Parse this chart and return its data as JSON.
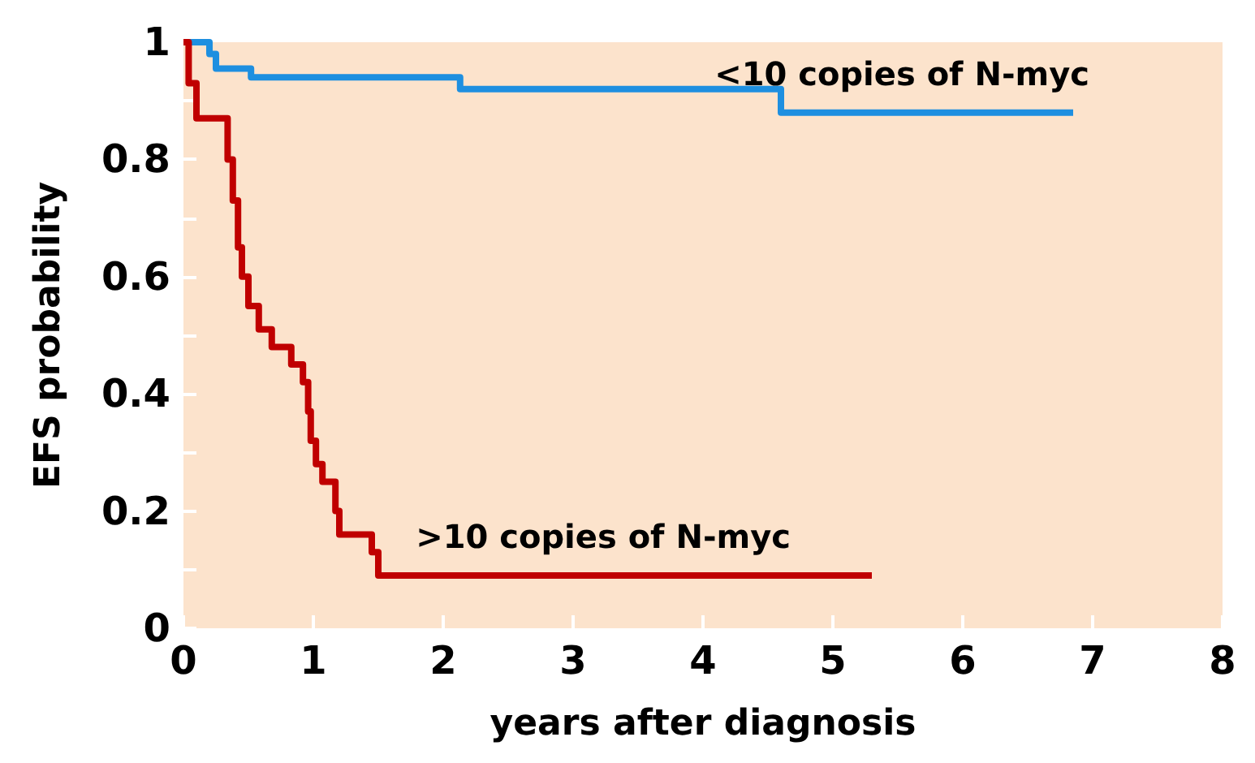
{
  "chart_data": {
    "type": "step",
    "xlabel": "years after diagnosis",
    "ylabel": "EFS probability",
    "xlim": [
      0,
      8
    ],
    "ylim": [
      0,
      1
    ],
    "xticks": [
      0,
      1,
      2,
      3,
      4,
      5,
      6,
      7,
      8
    ],
    "yticks": [
      0,
      {
        "value": 0.1,
        "label": null
      },
      0.2,
      {
        "value": 0.3,
        "label": null
      },
      0.4,
      {
        "value": 0.5,
        "label": null
      },
      0.6,
      {
        "value": 0.7,
        "label": null
      },
      0.8,
      {
        "value": 0.9,
        "label": null
      },
      1
    ],
    "grid": false,
    "legend": false,
    "series": [
      {
        "name": "<10 copies of N-myc",
        "color": "#1e8fe0",
        "x": [
          0,
          0.2,
          0.25,
          0.52,
          2.13,
          4.6,
          6.85
        ],
        "values": [
          1,
          0.98,
          0.955,
          0.94,
          0.92,
          0.88,
          0.88
        ]
      },
      {
        "name": ">10 copies of N-myc",
        "color": "#c00000",
        "x": [
          0,
          0.04,
          0.1,
          0.34,
          0.38,
          0.42,
          0.45,
          0.5,
          0.58,
          0.68,
          0.83,
          0.92,
          0.96,
          0.98,
          1.02,
          1.07,
          1.17,
          1.2,
          1.45,
          1.5,
          5.3
        ],
        "values": [
          1,
          0.93,
          0.87,
          0.8,
          0.73,
          0.65,
          0.6,
          0.55,
          0.51,
          0.48,
          0.45,
          0.42,
          0.37,
          0.32,
          0.28,
          0.25,
          0.2,
          0.16,
          0.13,
          0.09,
          0.09
        ]
      }
    ]
  }
}
